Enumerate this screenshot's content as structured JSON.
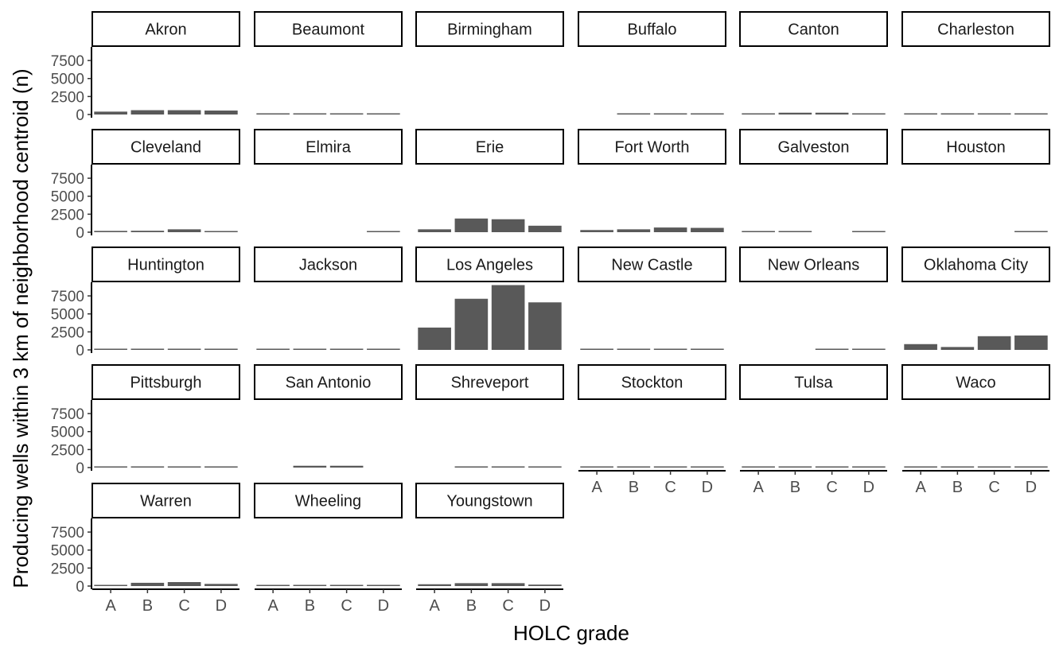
{
  "chart_data": {
    "type": "bar",
    "facet_layout": "wrap",
    "ncol": 6,
    "xlabel": "HOLC grade",
    "ylabel": "Producing wells within 3 km of neighborhood centroid (n)",
    "categories": [
      "A",
      "B",
      "C",
      "D"
    ],
    "yticks": [
      0,
      2500,
      5000,
      7500
    ],
    "ylim": [
      0,
      9500
    ],
    "bar_color": "#595959",
    "panels": [
      {
        "name": "Akron",
        "values": [
          400,
          600,
          600,
          550
        ]
      },
      {
        "name": "Beaumont",
        "values": [
          60,
          50,
          20,
          20
        ]
      },
      {
        "name": "Birmingham",
        "values": [
          0,
          0,
          0,
          0
        ]
      },
      {
        "name": "Buffalo",
        "values": [
          0,
          30,
          20,
          10
        ]
      },
      {
        "name": "Canton",
        "values": [
          80,
          250,
          250,
          150
        ]
      },
      {
        "name": "Charleston",
        "values": [
          40,
          50,
          50,
          50
        ]
      },
      {
        "name": "Cleveland",
        "values": [
          180,
          200,
          400,
          100
        ]
      },
      {
        "name": "Elmira",
        "values": [
          0,
          0,
          0,
          10
        ]
      },
      {
        "name": "Erie",
        "values": [
          400,
          1900,
          1800,
          900
        ]
      },
      {
        "name": "Fort Worth",
        "values": [
          300,
          400,
          650,
          600
        ]
      },
      {
        "name": "Galveston",
        "values": [
          10,
          10,
          0,
          10
        ]
      },
      {
        "name": "Houston",
        "values": [
          0,
          0,
          0,
          10
        ]
      },
      {
        "name": "Huntington",
        "values": [
          100,
          100,
          150,
          30
        ]
      },
      {
        "name": "Jackson",
        "values": [
          10,
          10,
          10,
          10
        ]
      },
      {
        "name": "Los Angeles",
        "values": [
          3100,
          7100,
          9000,
          6600
        ]
      },
      {
        "name": "New Castle",
        "values": [
          10,
          10,
          10,
          10
        ]
      },
      {
        "name": "New Orleans",
        "values": [
          0,
          0,
          10,
          10
        ]
      },
      {
        "name": "Oklahoma City",
        "values": [
          800,
          400,
          1900,
          2000
        ]
      },
      {
        "name": "Pittsburgh",
        "values": [
          20,
          50,
          80,
          80
        ]
      },
      {
        "name": "San Antonio",
        "values": [
          0,
          250,
          250,
          0
        ]
      },
      {
        "name": "Shreveport",
        "values": [
          0,
          50,
          80,
          150
        ]
      },
      {
        "name": "Stockton",
        "values": [
          60,
          50,
          50,
          40
        ]
      },
      {
        "name": "Tulsa",
        "values": [
          80,
          50,
          120,
          100
        ]
      },
      {
        "name": "Waco",
        "values": [
          20,
          20,
          20,
          20
        ]
      },
      {
        "name": "Warren",
        "values": [
          100,
          450,
          550,
          300
        ]
      },
      {
        "name": "Wheeling",
        "values": [
          30,
          30,
          30,
          30
        ]
      },
      {
        "name": "Youngstown",
        "values": [
          250,
          400,
          400,
          200
        ]
      }
    ]
  }
}
